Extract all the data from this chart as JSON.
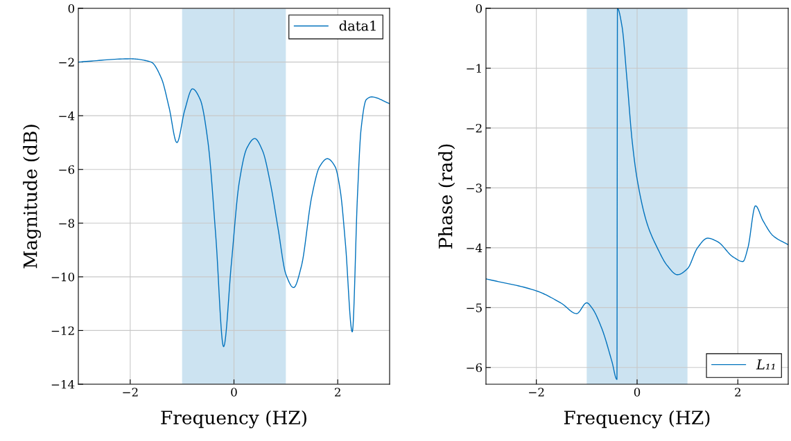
{
  "chart_data": [
    {
      "type": "line",
      "xlabel": "Frequency (HZ)",
      "ylabel": "Magnitude (dB)",
      "legend": "top right",
      "grid": true,
      "xlim": [
        -3,
        3
      ],
      "xticks": [
        {
          "value": -2,
          "label": "−2"
        },
        0,
        2
      ],
      "ylim": [
        -14,
        0
      ],
      "yticks": [
        {
          "value": -14,
          "label": "−14"
        },
        {
          "value": -12,
          "label": "−12"
        },
        {
          "value": -10,
          "label": "−10"
        },
        {
          "value": -8,
          "label": "−8"
        },
        {
          "value": -6,
          "label": "−6"
        },
        {
          "value": -4,
          "label": "−4"
        },
        {
          "value": -2,
          "label": "−2"
        },
        0
      ],
      "bands": [
        {
          "axis": "x",
          "from": -1,
          "to": 1,
          "color": "#cce3f1"
        }
      ],
      "series": [
        {
          "name": "data1",
          "color": "#0072bd",
          "x": [
            -3,
            -2,
            -1.6,
            -1.4,
            -1.25,
            -1.1,
            -0.95,
            -0.8,
            -0.65,
            -0.5,
            -0.35,
            -0.2,
            -0.05,
            0.1,
            0.25,
            0.4,
            0.55,
            0.7,
            0.85,
            1.0,
            1.15,
            1.3,
            1.5,
            1.65,
            1.8,
            1.95,
            2.05,
            2.15,
            2.28,
            2.38,
            2.45,
            2.55,
            2.65,
            3
          ],
          "values": [
            -2,
            -1.88,
            -2.0,
            -2.6,
            -3.7,
            -5.0,
            -3.8,
            -3.0,
            -3.4,
            -5.0,
            -8.5,
            -12.6,
            -9.5,
            -6.5,
            -5.2,
            -4.85,
            -5.3,
            -6.5,
            -8.2,
            -9.9,
            -10.4,
            -9.6,
            -7.0,
            -5.9,
            -5.6,
            -5.9,
            -6.8,
            -8.8,
            -12.05,
            -7.0,
            -4.5,
            -3.4,
            -3.3,
            -3.55
          ]
        }
      ]
    },
    {
      "type": "line",
      "xlabel": "Frequency (HZ)",
      "ylabel": "Phase (rad)",
      "legend": "bottom right",
      "grid": true,
      "xlim": [
        -3,
        3
      ],
      "xticks": [
        {
          "value": -2,
          "label": "−2"
        },
        0,
        2
      ],
      "ylim": [
        -6.28,
        0
      ],
      "yticks": [
        {
          "value": -6,
          "label": "−6"
        },
        {
          "value": -5,
          "label": "−5"
        },
        {
          "value": -4,
          "label": "−4"
        },
        {
          "value": -3,
          "label": "−3"
        },
        {
          "value": -2,
          "label": "−2"
        },
        {
          "value": -1,
          "label": "−1"
        },
        0
      ],
      "bands": [
        {
          "axis": "x",
          "from": -1,
          "to": 1,
          "color": "#cce3f1"
        }
      ],
      "series": [
        {
          "name": "L₁₁",
          "color": "#0072bd",
          "x": [
            -3,
            -2,
            -1.5,
            -1.2,
            -1.0,
            -0.9,
            -0.7,
            -0.5,
            -0.4,
            -0.39,
            -0.3,
            -0.2,
            -0.1,
            0,
            0.2,
            0.4,
            0.6,
            0.8,
            1.0,
            1.2,
            1.4,
            1.6,
            1.9,
            2.1,
            2.2,
            2.35,
            2.5,
            2.7,
            3.0
          ],
          "values": [
            -4.52,
            -4.72,
            -4.93,
            -5.1,
            -4.92,
            -5.0,
            -5.35,
            -5.9,
            -6.2,
            0.0,
            -0.3,
            -1.2,
            -2.2,
            -2.85,
            -3.6,
            -4.0,
            -4.3,
            -4.45,
            -4.35,
            -4.0,
            -3.84,
            -3.9,
            -4.15,
            -4.23,
            -4.0,
            -3.3,
            -3.55,
            -3.8,
            -3.95
          ]
        }
      ]
    }
  ]
}
